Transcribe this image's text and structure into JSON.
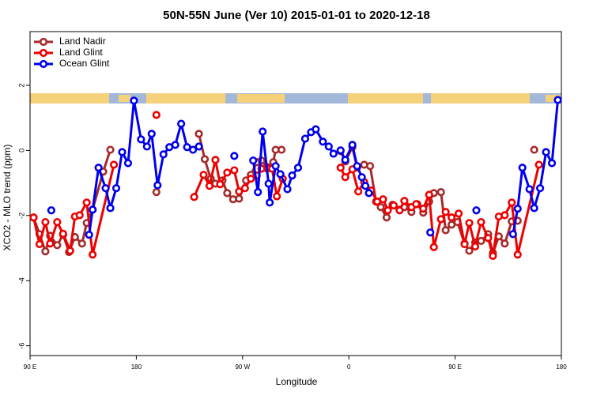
{
  "chart_data": {
    "type": "line",
    "title": "50N-55N June (Ver 10)   2015-01-01 to 2020-12-18",
    "x_label": "Longitude",
    "y_label": "XCO2 - MLO trend (ppm)",
    "xlim": [
      90,
      540
    ],
    "xticks": [
      {
        "value": 90,
        "label": "90 E"
      },
      {
        "value": 180,
        "label": "180"
      },
      {
        "value": 270,
        "label": "90 W"
      },
      {
        "value": 360,
        "label": "0"
      },
      {
        "value": 450,
        "label": "90 E"
      },
      {
        "value": 540,
        "label": "180"
      }
    ],
    "ylim": [
      -6.3,
      3.65
    ],
    "yticks": [
      2,
      0,
      -2,
      -4,
      -6
    ],
    "legend": "upper left",
    "series": [
      {
        "name": "Land Nadir",
        "color": "#a52a2a",
        "x": [
          93,
          98,
          103,
          107,
          113,
          118,
          123,
          128,
          134,
          138,
          143,
          152,
          158,
          null,
          197,
          null,
          233,
          238,
          243,
          247,
          253,
          257,
          262,
          267,
          273,
          277,
          282,
          286,
          291,
          296,
          298,
          303,
          null,
          353,
          357,
          363,
          367,
          373,
          378,
          383,
          387,
          392,
          397,
          403,
          407,
          413,
          418,
          423,
          428,
          432,
          438,
          442,
          447,
          452,
          458,
          462,
          467,
          472,
          478,
          482,
          487,
          492,
          498,
          503,
          null,
          517
        ],
        "values": [
          -2.06,
          -2.57,
          -3.1,
          -2.62,
          -2.91,
          -2.59,
          -3.12,
          -2.66,
          -2.86,
          -2.23,
          -1.82,
          -0.65,
          0.02,
          null,
          -1.28,
          null,
          0.51,
          -0.27,
          -0.87,
          -1.02,
          -0.92,
          -1.31,
          -1.5,
          -1.48,
          -0.92,
          -0.75,
          -0.36,
          -0.31,
          -0.51,
          -0.36,
          0.02,
          0.02,
          null,
          -0.02,
          -0.34,
          0.1,
          -0.53,
          -0.44,
          -0.48,
          -1.57,
          -1.74,
          -2.06,
          -1.67,
          -1.82,
          -1.74,
          -1.89,
          -1.65,
          -1.91,
          -1.57,
          -1.31,
          -1.28,
          -2.45,
          -2.28,
          -2.2,
          -2.86,
          -3.08,
          -2.83,
          -2.78,
          -2.57,
          -3.15,
          -2.64,
          -2.86,
          -2.18,
          -2.16,
          null,
          0.02
        ]
      },
      {
        "name": "Land Glint",
        "color": "#ee0000",
        "x": [
          93,
          98,
          103,
          107,
          113,
          118,
          124,
          128,
          132,
          138,
          143,
          161,
          null,
          197,
          null,
          229,
          237,
          242,
          247,
          251,
          257,
          263,
          267,
          272,
          277,
          282,
          286,
          291,
          295,
          299,
          304,
          null,
          353,
          357,
          363,
          368,
          373,
          379,
          384,
          389,
          393,
          398,
          403,
          407,
          413,
          417,
          423,
          428,
          432,
          438,
          442,
          447,
          453,
          458,
          462,
          467,
          472,
          478,
          482,
          487,
          492,
          498,
          503,
          521
        ],
        "values": [
          -2.06,
          -2.88,
          -2.2,
          -2.86,
          -2.2,
          -2.56,
          -3.08,
          -2.03,
          -1.99,
          -1.6,
          -3.2,
          -0.44,
          null,
          1.09,
          null,
          -1.43,
          -0.75,
          -1.09,
          -0.29,
          -1.04,
          -0.68,
          -0.61,
          -1.26,
          -1.16,
          -0.87,
          -0.77,
          -0.56,
          -0.56,
          -0.56,
          -1.41,
          -0.87,
          null,
          -0.53,
          -0.82,
          -0.58,
          -1.26,
          -0.97,
          -1.23,
          -1.57,
          -1.5,
          -1.84,
          -1.69,
          -1.84,
          -1.55,
          -1.74,
          -1.65,
          -1.79,
          -1.36,
          -2.97,
          -2.11,
          -1.89,
          -2.06,
          -1.94,
          -2.88,
          -2.23,
          -2.95,
          -2.2,
          -2.69,
          -3.24,
          -2.03,
          -1.99,
          -1.6,
          -3.2,
          -0.44
        ]
      },
      {
        "name": "Ocean Glint",
        "color": "#0000ee",
        "x": [
          108,
          null,
          140,
          143,
          148,
          154,
          158,
          163,
          168,
          173,
          178,
          184,
          189,
          193,
          198,
          203,
          208,
          213,
          218,
          223,
          228,
          233,
          null,
          263,
          null,
          279,
          283,
          287,
          292,
          293,
          298,
          302,
          308,
          312,
          317,
          323,
          328,
          332,
          338,
          343,
          347,
          353,
          357,
          363,
          367,
          371,
          374,
          377,
          null,
          429,
          null,
          468,
          null,
          499,
          503,
          507,
          513,
          517,
          522,
          527,
          532,
          537
        ],
        "values": [
          -1.84,
          null,
          -2.59,
          -1.82,
          -0.53,
          -1.16,
          -1.77,
          -1.16,
          -0.05,
          -0.39,
          1.53,
          0.34,
          0.12,
          0.51,
          -1.07,
          -0.12,
          0.1,
          0.17,
          0.82,
          0.1,
          0.02,
          0.12,
          null,
          -0.17,
          null,
          -0.31,
          -1.28,
          0.58,
          -1.02,
          -1.6,
          -0.48,
          -0.73,
          -1.19,
          -0.77,
          -0.53,
          0.36,
          0.56,
          0.65,
          0.27,
          0.12,
          -0.1,
          0,
          -0.29,
          0.17,
          -0.48,
          -0.82,
          -1.09,
          -1.31,
          null,
          -2.52,
          null,
          -1.84,
          null,
          -2.57,
          -1.79,
          -0.53,
          -1.19,
          -1.77,
          -1.16,
          -0.05,
          -0.39,
          1.55
        ]
      }
    ]
  }
}
